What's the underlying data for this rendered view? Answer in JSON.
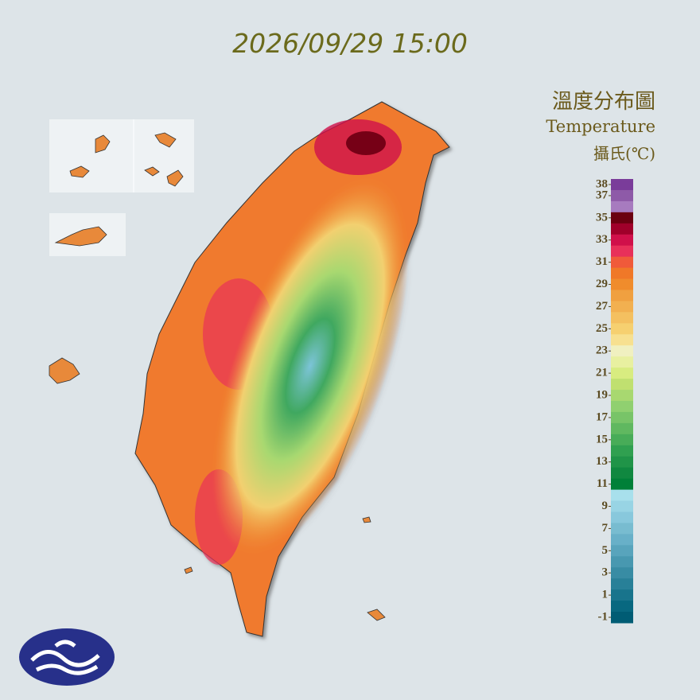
{
  "title": "2026/09/29 15:00",
  "legend": {
    "title": "溫度分布圖",
    "subtitle": "Temperature",
    "unit": "攝氏(℃)",
    "ticks": [
      38,
      37,
      35,
      33,
      31,
      29,
      27,
      25,
      23,
      21,
      19,
      17,
      15,
      13,
      11,
      9,
      7,
      5,
      3,
      1,
      -1
    ],
    "colors": [
      "#7a3c9a",
      "#8e5aa8",
      "#a77bbf",
      "#6b0010",
      "#a0002a",
      "#d0104a",
      "#e8305a",
      "#f05a3a",
      "#f07828",
      "#f08c2c",
      "#f0a040",
      "#f2b050",
      "#f4c060",
      "#f6d070",
      "#f7e090",
      "#f0f0c0",
      "#e8f0a0",
      "#d8ec80",
      "#c0e070",
      "#a8d870",
      "#90d070",
      "#78c468",
      "#60b860",
      "#48ac58",
      "#30a050",
      "#209448",
      "#108840",
      "#008038",
      "#a8e0ec",
      "#98d4e4",
      "#88c8dc",
      "#78bcd0",
      "#68b0c8",
      "#58a4bc",
      "#4898b0",
      "#388ca4",
      "#288098",
      "#18748c",
      "#086880",
      "#005c74"
    ]
  }
}
